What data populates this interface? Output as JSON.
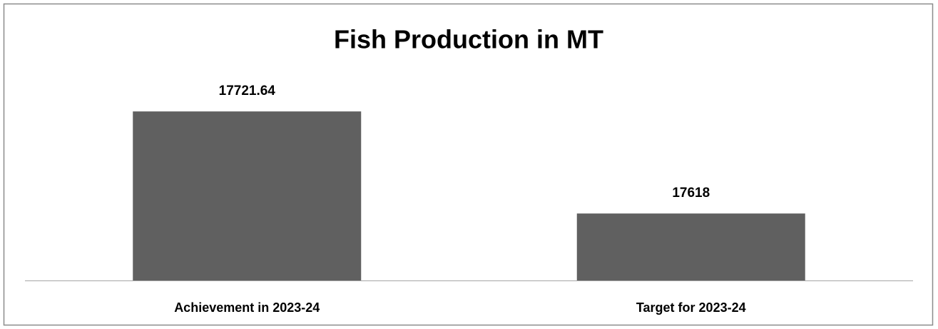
{
  "chart_data": {
    "type": "bar",
    "title": "Fish Production in MT",
    "categories": [
      "Achievement in 2023-24",
      "Target for 2023-24"
    ],
    "values": [
      17721.64,
      17618
    ],
    "color": "#606060",
    "ylim": [
      17550,
      17750
    ]
  }
}
